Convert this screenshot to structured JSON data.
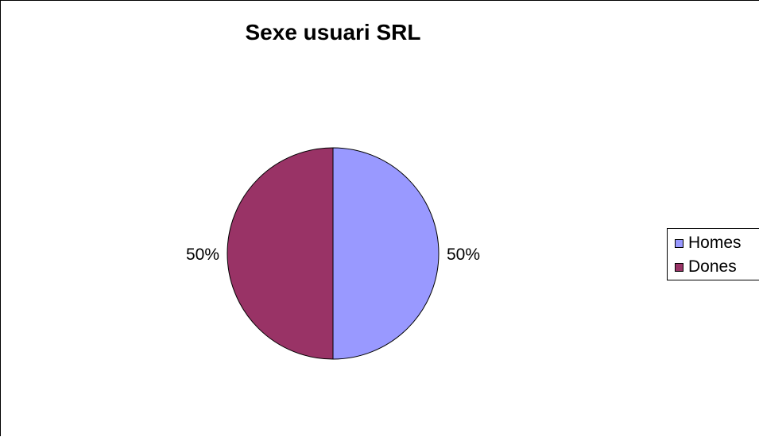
{
  "chart_data": {
    "type": "pie",
    "title": "Sexe usuari SRL",
    "categories": [
      "Homes",
      "Dones"
    ],
    "values": [
      50,
      50
    ],
    "data_labels": [
      "50%",
      "50%"
    ],
    "colors": [
      "#9999ff",
      "#993366"
    ],
    "legend": {
      "placement": "right",
      "entries": [
        "Homes",
        "Dones"
      ]
    }
  }
}
